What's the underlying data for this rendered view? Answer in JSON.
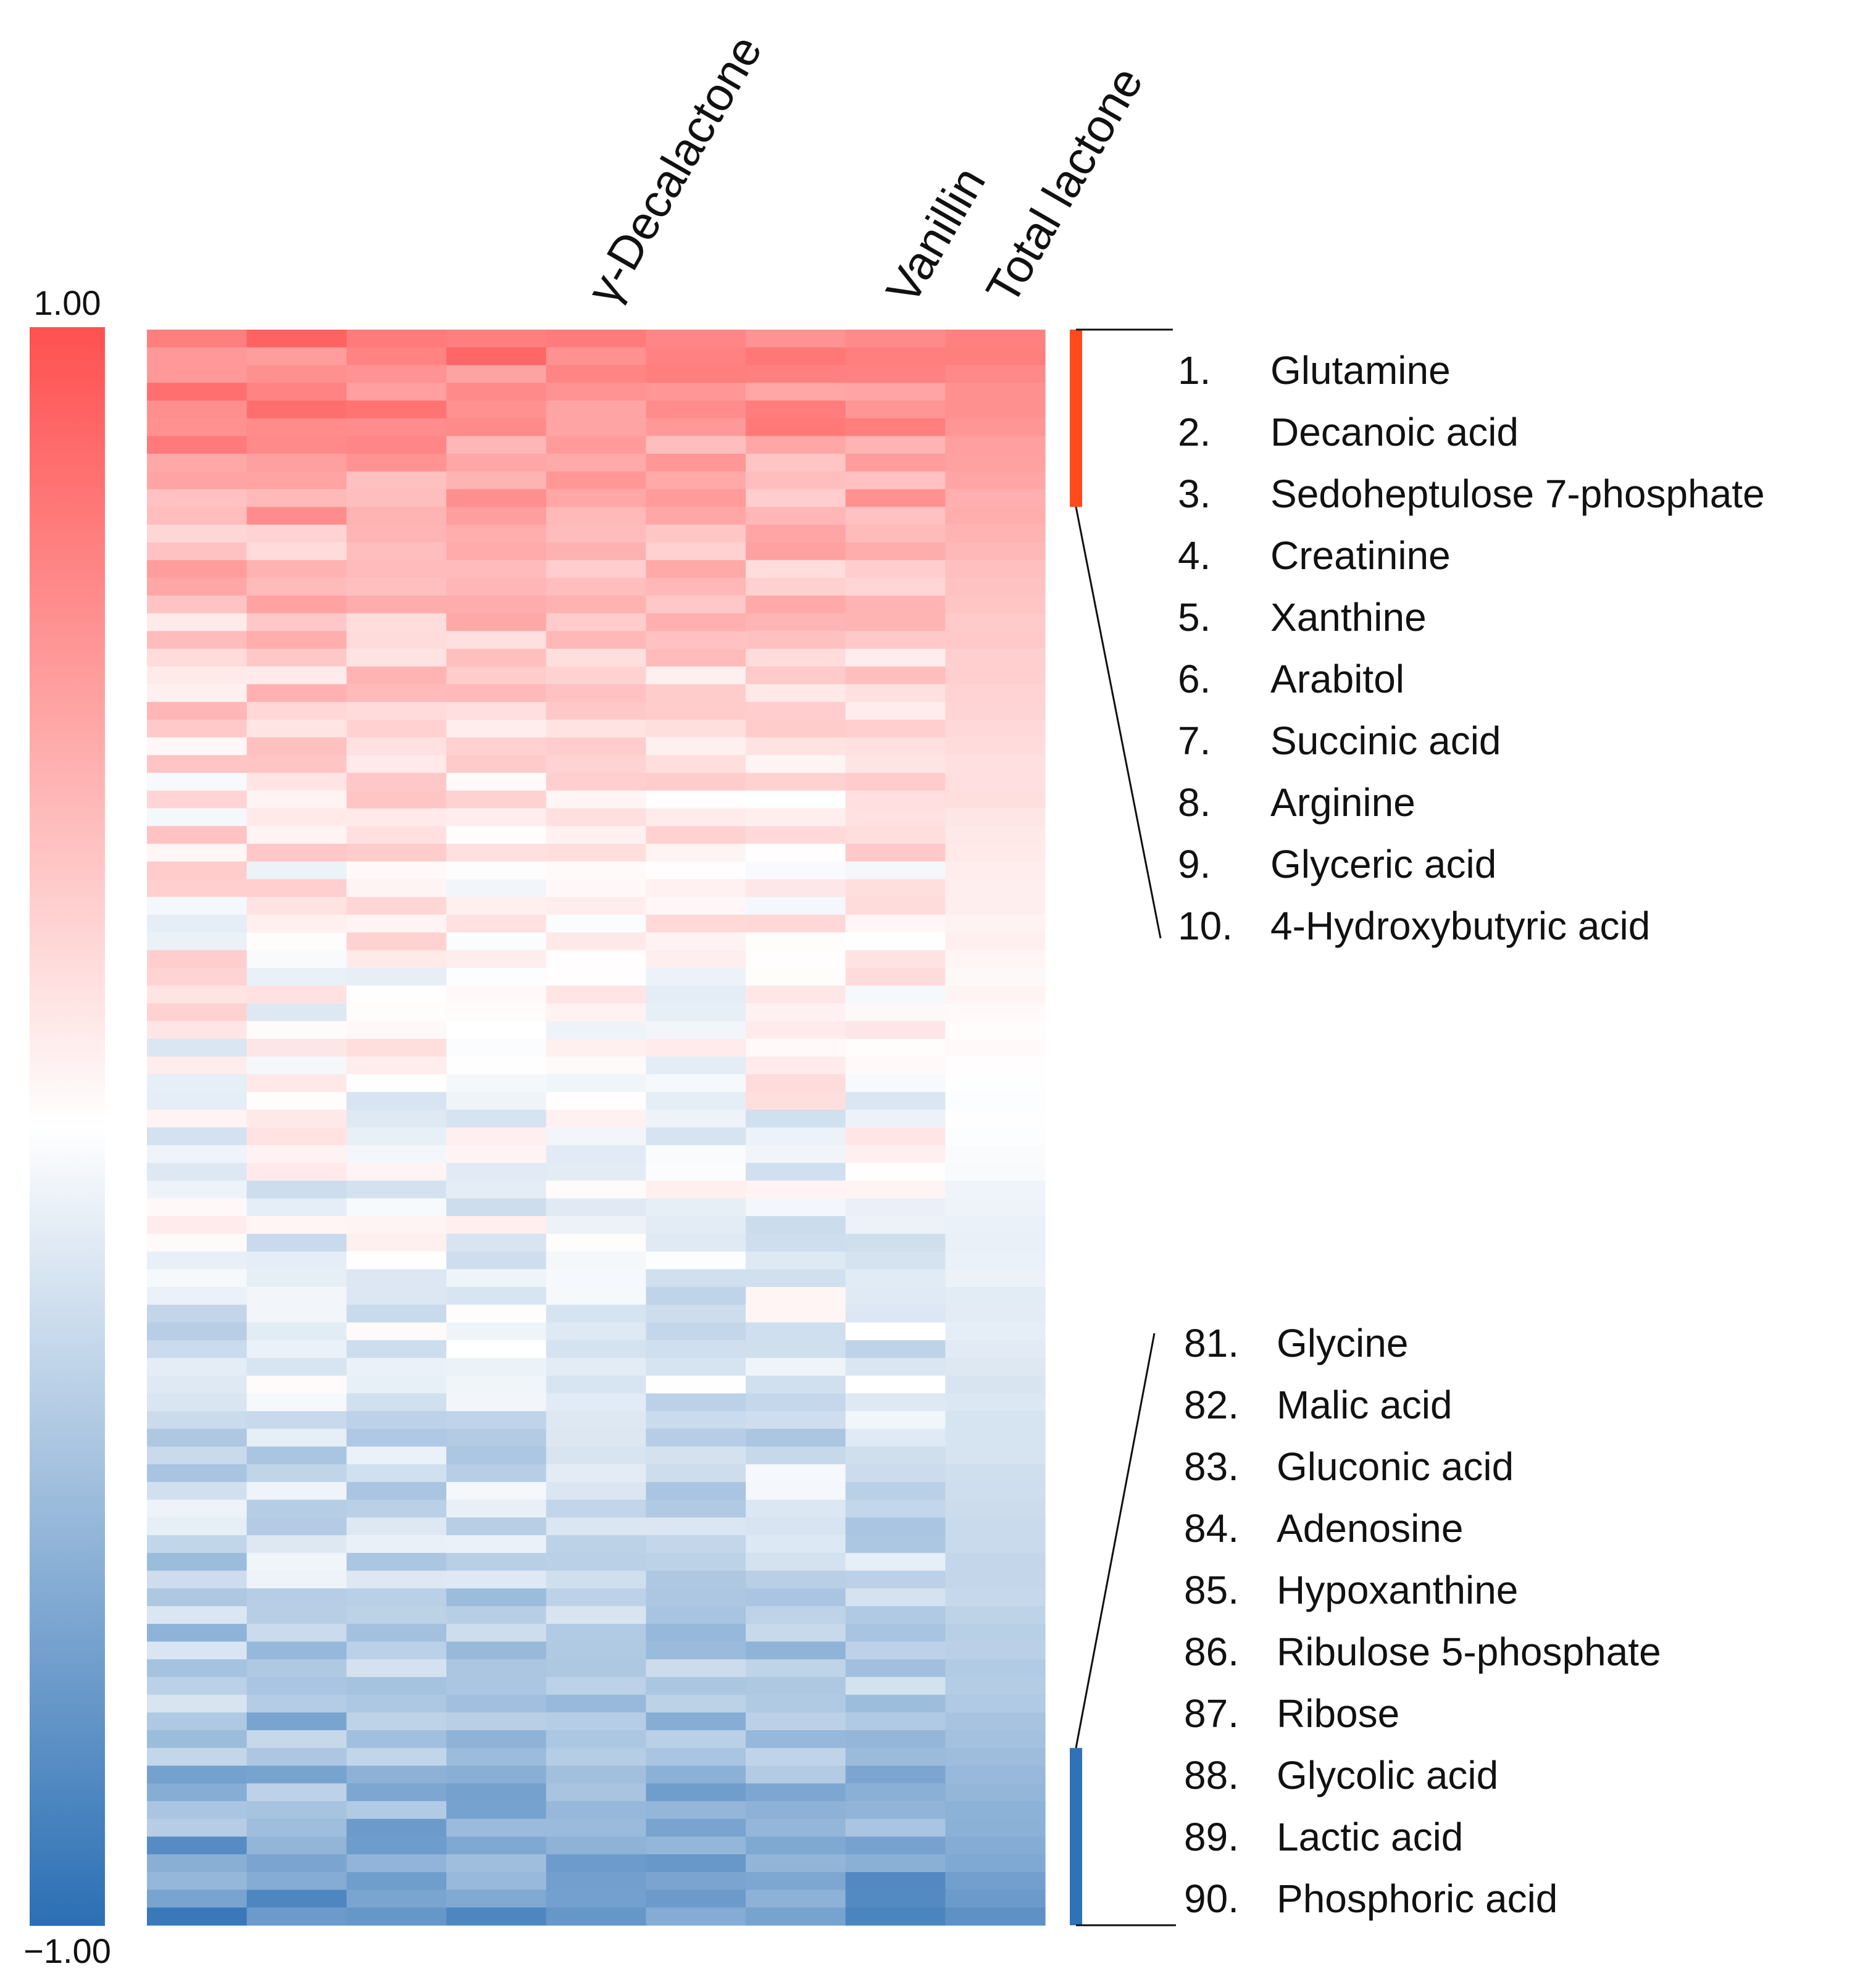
{
  "chart_data": {
    "type": "heatmap",
    "colorscale": {
      "min": -1.0,
      "max": 1.0,
      "low_color": "#2b6fb4",
      "mid_color": "#ffffff",
      "high_color": "#ff5050",
      "max_label": "1.00",
      "min_label": "−1.00"
    },
    "n_rows": 90,
    "n_cols": 9,
    "column_labels": [
      "",
      "",
      "",
      "",
      "γ-Decalactone",
      "",
      "",
      "Vanillin",
      "Total lactone"
    ],
    "seed": 20240611,
    "row_trend": [
      0.72,
      0.72,
      0.68,
      0.65,
      0.62,
      0.6,
      0.55,
      0.53,
      0.5,
      0.47,
      0.45,
      0.43,
      0.4,
      0.38,
      0.36,
      0.34,
      0.32,
      0.3,
      0.28,
      0.26,
      0.25,
      0.23,
      0.22,
      0.2,
      0.19,
      0.18,
      0.17,
      0.16,
      0.14,
      0.13,
      0.12,
      0.11,
      0.1,
      0.09,
      0.08,
      0.07,
      0.06,
      0.05,
      0.04,
      0.03,
      0.02,
      0.01,
      0.0,
      -0.01,
      -0.02,
      -0.03,
      -0.04,
      -0.05,
      -0.06,
      -0.07,
      -0.08,
      -0.09,
      -0.1,
      -0.11,
      -0.12,
      -0.13,
      -0.14,
      -0.15,
      -0.16,
      -0.17,
      -0.18,
      -0.19,
      -0.2,
      -0.21,
      -0.22,
      -0.23,
      -0.24,
      -0.25,
      -0.26,
      -0.27,
      -0.28,
      -0.29,
      -0.3,
      -0.32,
      -0.33,
      -0.35,
      -0.37,
      -0.39,
      -0.41,
      -0.43,
      -0.45,
      -0.47,
      -0.5,
      -0.53,
      -0.56,
      -0.59,
      -0.62,
      -0.66,
      -0.7,
      -0.74
    ],
    "column_noise": [
      0.22,
      0.22,
      0.18,
      0.18,
      0.12,
      0.18,
      0.2,
      0.18,
      0.02
    ],
    "brackets": [
      {
        "color": "#ff4a1c",
        "from_row": 1,
        "to_row": 10
      },
      {
        "color": "#2f72b7",
        "from_row": 81,
        "to_row": 90
      }
    ],
    "top_list": [
      {
        "num": "1.",
        "name": "Glutamine"
      },
      {
        "num": "2.",
        "name": "Decanoic acid"
      },
      {
        "num": "3.",
        "name": "Sedoheptulose 7-phosphate"
      },
      {
        "num": "4.",
        "name": "Creatinine"
      },
      {
        "num": "5.",
        "name": "Xanthine"
      },
      {
        "num": "6.",
        "name": "Arabitol"
      },
      {
        "num": "7.",
        "name": "Succinic acid"
      },
      {
        "num": "8.",
        "name": "Arginine"
      },
      {
        "num": "9.",
        "name": "Glyceric acid"
      },
      {
        "num": "10.",
        "name": "4-Hydroxybutyric acid"
      }
    ],
    "bottom_list": [
      {
        "num": "81.",
        "name": "Glycine"
      },
      {
        "num": "82.",
        "name": "Malic acid"
      },
      {
        "num": "83.",
        "name": "Gluconic acid"
      },
      {
        "num": "84.",
        "name": "Adenosine"
      },
      {
        "num": "85.",
        "name": "Hypoxanthine"
      },
      {
        "num": "86.",
        "name": "Ribulose 5-phosphate"
      },
      {
        "num": "87.",
        "name": "Ribose"
      },
      {
        "num": "88.",
        "name": "Glycolic acid"
      },
      {
        "num": "89.",
        "name": "Lactic acid"
      },
      {
        "num": "90.",
        "name": "Phosphoric acid"
      }
    ]
  }
}
